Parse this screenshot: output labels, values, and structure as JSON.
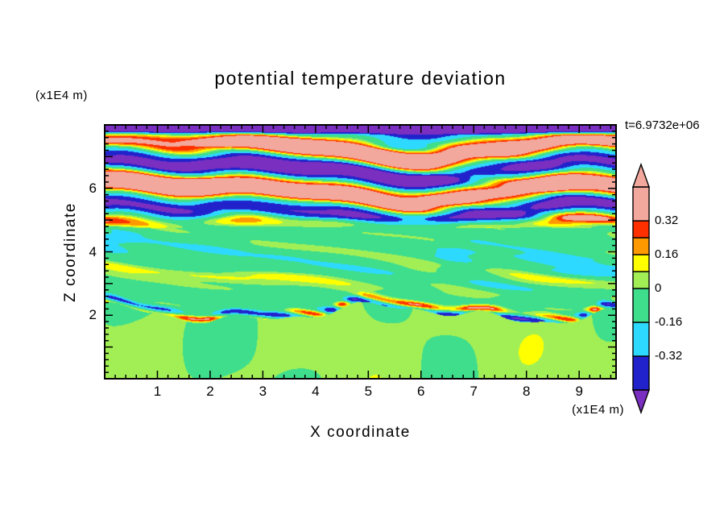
{
  "title": "potential temperature deviation",
  "time_label": "t=6.9732e+06",
  "axes": {
    "x": {
      "label": "X coordinate",
      "unit": "(x1E4 m)",
      "tick_labels": [
        "1",
        "2",
        "3",
        "4",
        "5",
        "6",
        "7",
        "8",
        "9"
      ],
      "range": [
        0,
        9.7
      ]
    },
    "y": {
      "label": "Z coordinate",
      "unit": "(x1E4 m)",
      "tick_labels": [
        "2",
        "4",
        "6"
      ],
      "range": [
        0,
        8
      ]
    }
  },
  "colorbar": {
    "ticks": [
      {
        "label": "0.32",
        "value": 0.32
      },
      {
        "label": "0.16",
        "value": 0.16
      },
      {
        "label": "0",
        "value": 0
      },
      {
        "label": "-0.16",
        "value": -0.16
      },
      {
        "label": "-0.32",
        "value": -0.32
      }
    ],
    "over_color": "#F3A89D",
    "under_color": "#7A2FC0"
  },
  "chart_data": {
    "type": "heatmap",
    "title": "potential temperature deviation",
    "xlabel": "X coordinate",
    "ylabel": "Z coordinate",
    "x_unit": "(x1E4 m)",
    "y_unit": "(x1E4 m)",
    "time_annotation": "t=6.9732e+06",
    "xlim": [
      0,
      9.7
    ],
    "ylim": [
      0,
      8
    ],
    "x_ticks": [
      1,
      2,
      3,
      4,
      5,
      6,
      7,
      8,
      9
    ],
    "y_ticks": [
      2,
      4,
      6
    ],
    "grid": false,
    "legend": "vertical colorbar with over/under arrow ends, right side",
    "colorbar_labeled_levels": [
      0.32,
      0.16,
      0,
      -0.16,
      -0.32
    ],
    "levels": [
      -0.48,
      -0.32,
      -0.16,
      0,
      0.08,
      0.16,
      0.24,
      0.32,
      0.48
    ],
    "colors_low_to_high": [
      "#7A2FC0",
      "#2222CC",
      "#2ED9FF",
      "#3EDE8C",
      "#A2EF55",
      "#FFFF00",
      "#FF9900",
      "#FF3000",
      "#F3A89D"
    ],
    "field_layers_top_to_bottom": [
      {
        "z_range": [
          7.7,
          8.0
        ],
        "description": "thin purple (strongly negative) strip along the top edge"
      },
      {
        "z_range": [
          6.9,
          7.7
        ],
        "description": "salmon (strongly positive) band with embedded purple and blue patches, red/orange fringes"
      },
      {
        "z_range": [
          6.2,
          6.9
        ],
        "description": "wavy purple and dark-blue layer broken into long streaks"
      },
      {
        "z_range": [
          5.6,
          6.2
        ],
        "description": "salmon band interrupted by purple blobs"
      },
      {
        "z_range": [
          4.8,
          5.6
        ],
        "description": "alternating thin dark-blue/cyan and red/orange streaks"
      },
      {
        "z_range": [
          2.3,
          4.8
        ],
        "description": "green background with cyan patches and yellow/orange/red horizontal streaks"
      },
      {
        "z_range": [
          2.0,
          2.3
        ],
        "description": "thin multicoloured interface streak line (red/blue/purple dashes)"
      },
      {
        "z_range": [
          0.0,
          2.0
        ],
        "description": "yellow-green background with dome-shaped green blobs"
      }
    ]
  }
}
